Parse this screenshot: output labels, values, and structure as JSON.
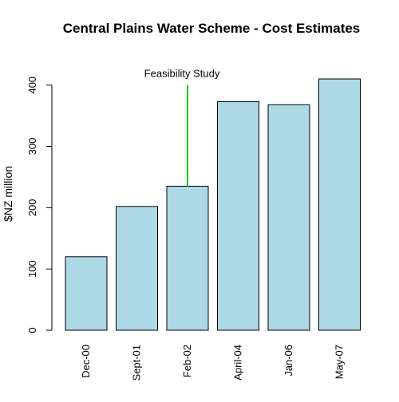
{
  "chart_data": {
    "type": "bar",
    "title": "Central Plains Water Scheme - Cost Estimates",
    "xlabel": "",
    "ylabel": "$NZ million",
    "categories": [
      "Dec-00",
      "Sept-01",
      "Feb-02",
      "April-04",
      "Jan-06",
      "May-07"
    ],
    "values": [
      120,
      202,
      235,
      373,
      368,
      410
    ],
    "ylim": [
      0,
      410
    ],
    "y_ticks": [
      0,
      100,
      200,
      300,
      400
    ],
    "grid": false,
    "legend": "none",
    "bar_color": "#add8e6",
    "bar_border_color": "#000000",
    "annotation": {
      "text": "Feasibility Study",
      "category": "Feb-02",
      "from_value": 235,
      "to_value": 400,
      "color": "#00cc00"
    }
  }
}
